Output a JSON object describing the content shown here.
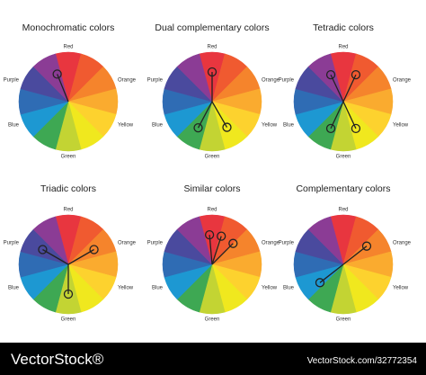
{
  "wheels": [
    {
      "title": "Monochromatic colors",
      "labels": {
        "red": "Red",
        "orange": "Orange",
        "yellow": "Yellow",
        "green": "Green",
        "blue": "Blue",
        "purple": "Purple"
      }
    },
    {
      "title": "Dual complementary colors",
      "labels": {
        "red": "Red",
        "orange": "Orange",
        "yellow": "Yellow",
        "green": "Green",
        "blue": "Blue",
        "purple": "Purple"
      }
    },
    {
      "title": "Tetradic colors",
      "labels": {
        "red": "Red",
        "orange": "Orange",
        "yellow": "Yellow",
        "green": "Green",
        "blue": "Blue",
        "purple": "Purple"
      }
    },
    {
      "title": "Triadic colors",
      "labels": {
        "red": "Red",
        "orange": "Orange",
        "yellow": "Yellow",
        "green": "Green",
        "blue": "Blue",
        "purple": "Purple"
      }
    },
    {
      "title": "Similar colors",
      "labels": {
        "red": "Red",
        "orange": "Orange",
        "yellow": "Yellow",
        "green": "Green",
        "blue": "Blue",
        "purple": "Purple"
      }
    },
    {
      "title": "Complementary colors",
      "labels": {
        "red": "Red",
        "orange": "Orange",
        "yellow": "Yellow",
        "green": "Green",
        "blue": "Blue",
        "purple": "Purple"
      }
    }
  ],
  "footer": {
    "brand": "VectorStock®",
    "url": "VectorStock.com/32772354"
  }
}
